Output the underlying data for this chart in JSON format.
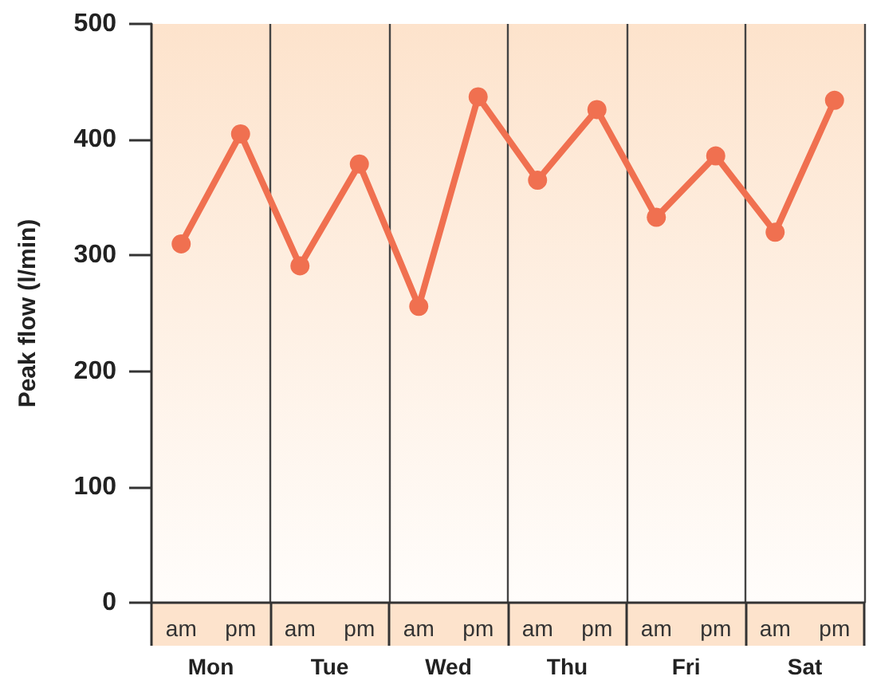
{
  "chart_data": {
    "type": "line",
    "ylabel": "Peak flow (l/min)",
    "categories": [
      "am",
      "pm",
      "am",
      "pm",
      "am",
      "pm",
      "am",
      "pm",
      "am",
      "pm",
      "am",
      "pm"
    ],
    "series": [
      {
        "color": "#f07050",
        "values": [
          310,
          405,
          291,
          379,
          256,
          437,
          365,
          426,
          333,
          386,
          320,
          434
        ]
      }
    ],
    "ylim": [
      0,
      500
    ],
    "yticks": [
      0,
      100,
      200,
      300,
      400,
      500
    ],
    "grid": "x",
    "marker": "circle",
    "line_style": "solid",
    "annotations": [
      "Mon",
      "Tue",
      "Wed",
      "Thu",
      "Fri",
      "Sat"
    ]
  }
}
